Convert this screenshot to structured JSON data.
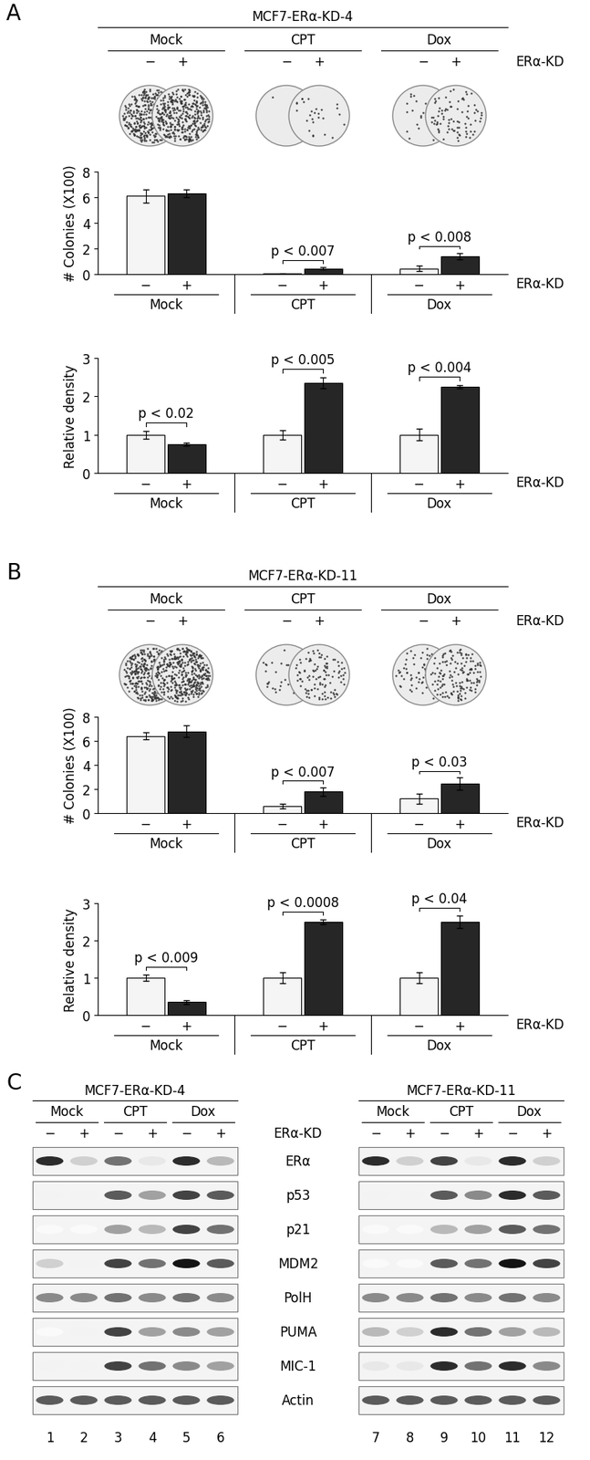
{
  "chart_data": [
    {
      "type": "bar",
      "ylabel": "# Colonies (X100)",
      "xlabel": "ERα-KD",
      "categories": [
        "Mock",
        "CPT",
        "Dox"
      ],
      "series": [
        {
          "name": "−",
          "color": "#f5f5f5",
          "values": [
            6.1,
            0.05,
            0.45
          ],
          "errors": [
            0.5,
            0.03,
            0.2
          ]
        },
        {
          "name": "+",
          "color": "#262626",
          "values": [
            6.3,
            0.45,
            1.4
          ],
          "errors": [
            0.3,
            0.1,
            0.25
          ]
        }
      ],
      "annotations": [
        null,
        "p < 0.007",
        "p < 0.008"
      ],
      "ylim": [
        0,
        8
      ],
      "yticks": [
        0,
        2,
        4,
        6,
        8
      ]
    },
    {
      "type": "bar",
      "ylabel": "Relative density",
      "xlabel": "ERα-KD",
      "categories": [
        "Mock",
        "CPT",
        "Dox"
      ],
      "series": [
        {
          "name": "−",
          "color": "#f5f5f5",
          "values": [
            1.0,
            1.0,
            1.0
          ],
          "errors": [
            0.1,
            0.12,
            0.15
          ]
        },
        {
          "name": "+",
          "color": "#262626",
          "values": [
            0.75,
            2.35,
            2.25
          ],
          "errors": [
            0.05,
            0.15,
            0.05
          ]
        }
      ],
      "annotations": [
        "p < 0.02",
        "p < 0.005",
        "p < 0.004"
      ],
      "ylim": [
        0,
        3
      ],
      "yticks": [
        0,
        1,
        2,
        3
      ]
    },
    {
      "type": "bar",
      "ylabel": "# Colonies (X100)",
      "xlabel": "ERα-KD",
      "categories": [
        "Mock",
        "CPT",
        "Dox"
      ],
      "series": [
        {
          "name": "−",
          "color": "#f5f5f5",
          "values": [
            6.4,
            0.6,
            1.2
          ],
          "errors": [
            0.3,
            0.2,
            0.4
          ]
        },
        {
          "name": "+",
          "color": "#262626",
          "values": [
            6.8,
            1.8,
            2.45
          ],
          "errors": [
            0.5,
            0.35,
            0.5
          ]
        }
      ],
      "annotations": [
        null,
        "p < 0.007",
        "p < 0.03"
      ],
      "ylim": [
        0,
        8
      ],
      "yticks": [
        0,
        2,
        4,
        6,
        8
      ]
    },
    {
      "type": "bar",
      "ylabel": "Relative density",
      "xlabel": "ERα-KD",
      "categories": [
        "Mock",
        "CPT",
        "Dox"
      ],
      "series": [
        {
          "name": "−",
          "color": "#f5f5f5",
          "values": [
            1.0,
            1.0,
            1.0
          ],
          "errors": [
            0.08,
            0.15,
            0.15
          ]
        },
        {
          "name": "+",
          "color": "#262626",
          "values": [
            0.35,
            2.5,
            2.5
          ],
          "errors": [
            0.05,
            0.07,
            0.17
          ]
        }
      ],
      "annotations": [
        "p < 0.009",
        "p < 0.0008",
        "p < 0.04"
      ],
      "ylim": [
        0,
        3
      ],
      "yticks": [
        0,
        1,
        2,
        3
      ]
    }
  ],
  "panels": [
    {
      "label": "A",
      "header": "MCF7-ERα-KD-4"
    },
    {
      "label": "B",
      "header": "MCF7-ERα-KD-11"
    }
  ],
  "blot": {
    "label": "C",
    "row_label": "ERα-KD",
    "groups": [
      "Mock",
      "CPT",
      "Dox"
    ],
    "signs": [
      "−",
      "+"
    ],
    "proteins": [
      "ERα",
      "p53",
      "p21",
      "MDM2",
      "PolH",
      "PUMA",
      "MIC-1",
      "Actin"
    ],
    "lanes": [
      1,
      2,
      3,
      4,
      5,
      6,
      7,
      8,
      9,
      10,
      11,
      12
    ],
    "blots": [
      {
        "header": "MCF7-ERα-KD-4",
        "bands": [
          [
            0.9,
            0.2,
            0.6,
            0.1,
            0.9,
            0.3
          ],
          [
            0.05,
            0.05,
            0.7,
            0.4,
            0.8,
            0.7
          ],
          [
            0.02,
            0.02,
            0.4,
            0.3,
            0.8,
            0.6
          ],
          [
            0.2,
            0.05,
            0.8,
            0.6,
            1.0,
            0.7
          ],
          [
            0.5,
            0.5,
            0.6,
            0.5,
            0.6,
            0.5
          ],
          [
            0.02,
            0.05,
            0.8,
            0.4,
            0.5,
            0.4
          ],
          [
            0.05,
            0.05,
            0.8,
            0.6,
            0.5,
            0.4
          ],
          [
            0.7,
            0.7,
            0.7,
            0.7,
            0.7,
            0.7
          ]
        ]
      },
      {
        "header": "MCF7-ERα-KD-11",
        "bands": [
          [
            0.9,
            0.2,
            0.8,
            0.1,
            0.9,
            0.2
          ],
          [
            0.05,
            0.05,
            0.7,
            0.5,
            0.9,
            0.7
          ],
          [
            0.02,
            0.02,
            0.3,
            0.4,
            0.7,
            0.6
          ],
          [
            0.02,
            0.02,
            0.7,
            0.6,
            1.0,
            0.8
          ],
          [
            0.5,
            0.5,
            0.6,
            0.5,
            0.6,
            0.5
          ],
          [
            0.3,
            0.2,
            0.9,
            0.6,
            0.4,
            0.3
          ],
          [
            0.1,
            0.1,
            0.9,
            0.6,
            0.9,
            0.5
          ],
          [
            0.7,
            0.7,
            0.7,
            0.7,
            0.7,
            0.7
          ]
        ]
      }
    ]
  }
}
